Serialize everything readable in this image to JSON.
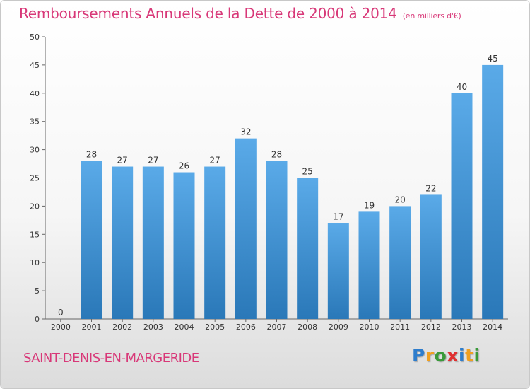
{
  "chart_data": {
    "type": "bar",
    "title": "Remboursements Annuels de la Dette de 2000 à 2014",
    "subtitle": "(en milliers d'€)",
    "categories": [
      "2000",
      "2001",
      "2002",
      "2003",
      "2004",
      "2005",
      "2006",
      "2007",
      "2008",
      "2009",
      "2010",
      "2011",
      "2012",
      "2013",
      "2014"
    ],
    "values": [
      0,
      28,
      27,
      27,
      26,
      27,
      32,
      28,
      25,
      17,
      19,
      20,
      22,
      40,
      45
    ],
    "ylim": [
      0,
      50
    ],
    "yticks": [
      0,
      5,
      10,
      15,
      20,
      25,
      30,
      35,
      40,
      45,
      50
    ],
    "xlabel": "",
    "ylabel": "",
    "grid": false,
    "colors": {
      "bar_top": "#5aaae8",
      "bar_bottom": "#2a78b8",
      "axis": "#666666",
      "text": "#333333"
    }
  },
  "footer": {
    "commune": "SAINT-DENIS-EN-MARGERIDE",
    "brand_letters": [
      {
        "char": "P",
        "color": "#2e7dcc"
      },
      {
        "char": "r",
        "color": "#f0a020"
      },
      {
        "char": "o",
        "color": "#3a9a3a"
      },
      {
        "char": "x",
        "color": "#e03030"
      },
      {
        "char": "i",
        "color": "#2e7dcc"
      },
      {
        "char": "t",
        "color": "#f0a020"
      },
      {
        "char": "i",
        "color": "#3a9a3a"
      }
    ]
  },
  "colors": {
    "title": "#d83878"
  }
}
